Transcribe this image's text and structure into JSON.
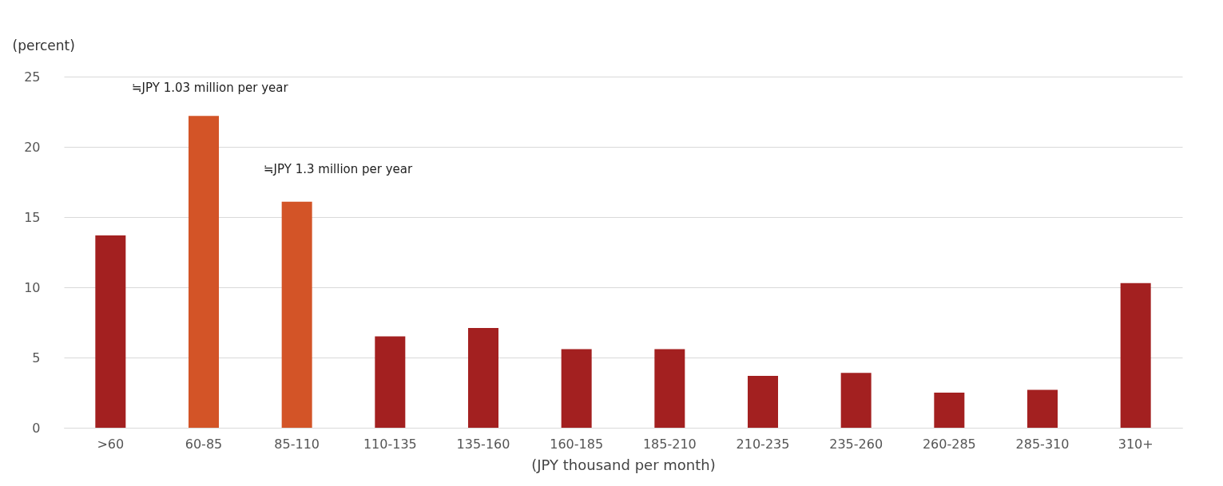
{
  "chart_data": {
    "type": "bar",
    "xlabel": "(JPY thousand per month)",
    "ylabel": "(percent)",
    "categories": [
      ">60",
      "60-85",
      "85-110",
      "110-135",
      "135-160",
      "160-185",
      "185-210",
      "210-235",
      "235-260",
      "260-285",
      "285-310",
      "310+"
    ],
    "values": [
      13.7,
      22.2,
      16.1,
      6.5,
      7.1,
      5.6,
      5.6,
      3.7,
      3.9,
      2.5,
      2.7,
      10.3
    ],
    "colors": [
      "#a32020",
      "#d35427",
      "#d35427",
      "#a32020",
      "#a32020",
      "#a32020",
      "#a32020",
      "#a32020",
      "#a32020",
      "#a32020",
      "#a32020",
      "#a32020"
    ],
    "ylim": [
      0,
      25
    ],
    "yticks": [
      0,
      5,
      10,
      15,
      20,
      25
    ],
    "grid": "y",
    "annotations": [
      "≒JPY 1.03 million per year",
      "≒JPY 1.3 million per year"
    ]
  }
}
